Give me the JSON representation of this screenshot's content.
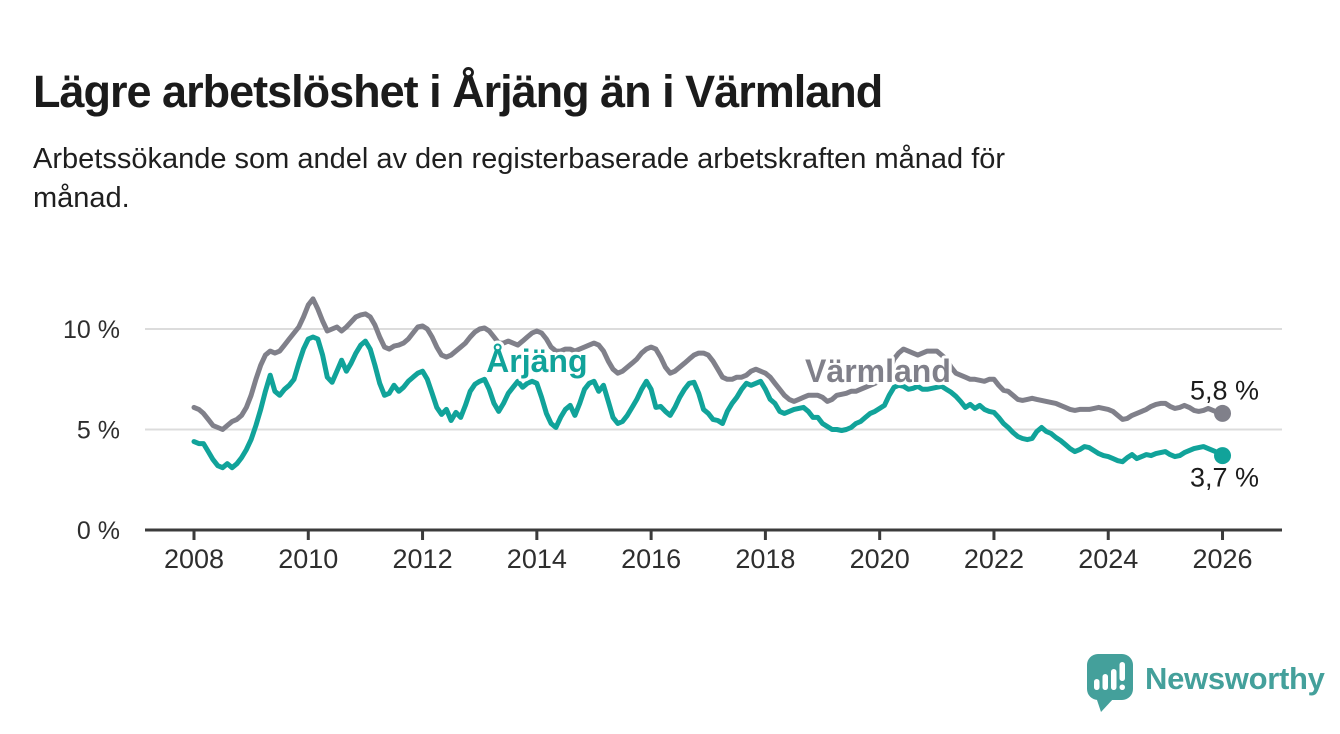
{
  "header": {
    "title": "Lägre arbetslöshet i Årjäng än i Värmland",
    "subtitle_lines": [
      "Arbetssökande som andel av den registerbaserade arbetskraften månad för",
      "månad."
    ]
  },
  "chart_data": {
    "type": "line",
    "unit": "%",
    "frequency": "monthly",
    "x_start_year": 2008,
    "x_end_year": 2026,
    "xlim_years": [
      2007.15,
      2027.05
    ],
    "ylim": [
      0,
      11.9
    ],
    "grid": "horizontal",
    "x_ticks": [
      2008,
      2010,
      2012,
      2014,
      2016,
      2018,
      2020,
      2022,
      2024,
      2026
    ],
    "y_ticks": [
      {
        "value": 0,
        "label": "0 %"
      },
      {
        "value": 5,
        "label": "5 %"
      },
      {
        "value": 10,
        "label": "10 %"
      }
    ],
    "series": [
      {
        "name": "Värmland",
        "color": "#80808a",
        "label": {
          "text": "Värmland",
          "x": 2019.97,
          "y": 7.9
        },
        "end_label": {
          "text": "5,8 %",
          "position": "above"
        },
        "end_value": 5.8,
        "start_year": 2008,
        "values": [
          6.1,
          6.0,
          5.8,
          5.5,
          5.2,
          5.1,
          5.0,
          5.2,
          5.4,
          5.5,
          5.7,
          6.1,
          6.7,
          7.5,
          8.2,
          8.7,
          8.9,
          8.8,
          8.9,
          9.2,
          9.5,
          9.8,
          10.1,
          10.6,
          11.2,
          11.5,
          11.0,
          10.4,
          9.9,
          10.0,
          10.1,
          9.9,
          10.1,
          10.35,
          10.6,
          10.7,
          10.75,
          10.6,
          10.2,
          9.6,
          9.1,
          9.0,
          9.15,
          9.2,
          9.3,
          9.5,
          9.8,
          10.1,
          10.15,
          10.0,
          9.6,
          9.1,
          8.7,
          8.6,
          8.7,
          8.9,
          9.1,
          9.3,
          9.6,
          9.85,
          10.0,
          10.05,
          9.9,
          9.6,
          9.3,
          9.3,
          9.4,
          9.3,
          9.2,
          9.4,
          9.6,
          9.8,
          9.9,
          9.8,
          9.5,
          9.1,
          8.9,
          8.9,
          9.0,
          9.0,
          8.9,
          9.0,
          9.1,
          9.2,
          9.3,
          9.2,
          8.9,
          8.4,
          8.0,
          7.8,
          7.9,
          8.1,
          8.3,
          8.5,
          8.8,
          9.0,
          9.1,
          9.0,
          8.6,
          8.1,
          7.8,
          7.9,
          8.1,
          8.3,
          8.5,
          8.7,
          8.8,
          8.8,
          8.7,
          8.4,
          8.0,
          7.6,
          7.5,
          7.5,
          7.6,
          7.6,
          7.7,
          7.9,
          8.0,
          7.9,
          7.8,
          7.6,
          7.3,
          7.0,
          6.7,
          6.5,
          6.4,
          6.5,
          6.6,
          6.7,
          6.7,
          6.7,
          6.6,
          6.4,
          6.5,
          6.7,
          6.75,
          6.8,
          6.9,
          6.9,
          7.0,
          7.1,
          7.2,
          7.3,
          7.4,
          7.5,
          7.9,
          8.5,
          8.8,
          9.0,
          8.9,
          8.8,
          8.7,
          8.8,
          8.9,
          8.9,
          8.9,
          8.7,
          8.5,
          8.1,
          7.8,
          7.7,
          7.6,
          7.5,
          7.5,
          7.45,
          7.4,
          7.5,
          7.5,
          7.2,
          6.95,
          6.9,
          6.7,
          6.5,
          6.45,
          6.5,
          6.55,
          6.5,
          6.45,
          6.4,
          6.35,
          6.3,
          6.2,
          6.1,
          6.0,
          5.95,
          6.0,
          6.0,
          6.0,
          6.05,
          6.1,
          6.05,
          6.0,
          5.9,
          5.7,
          5.5,
          5.55,
          5.7,
          5.8,
          5.9,
          6.0,
          6.15,
          6.25,
          6.3,
          6.3,
          6.15,
          6.05,
          6.1,
          6.2,
          6.1,
          5.95,
          5.9,
          5.95,
          6.05,
          5.95,
          5.85,
          5.8
        ]
      },
      {
        "name": "Årjäng",
        "color": "#11a39a",
        "label": {
          "text": "Årjäng",
          "x": 2014.0,
          "y": 8.4
        },
        "end_label": {
          "text": "3,7 %",
          "position": "below"
        },
        "end_value": 3.7,
        "start_year": 2008,
        "values": [
          4.4,
          4.3,
          4.3,
          3.9,
          3.5,
          3.2,
          3.1,
          3.3,
          3.1,
          3.3,
          3.6,
          4.0,
          4.5,
          5.2,
          6.0,
          6.9,
          7.7,
          6.9,
          6.7,
          7.0,
          7.2,
          7.5,
          8.3,
          9.0,
          9.5,
          9.6,
          9.5,
          8.7,
          7.6,
          7.35,
          7.9,
          8.45,
          7.9,
          8.3,
          8.8,
          9.2,
          9.4,
          9.0,
          8.2,
          7.3,
          6.7,
          6.8,
          7.2,
          6.9,
          7.1,
          7.4,
          7.6,
          7.8,
          7.9,
          7.5,
          6.8,
          6.1,
          5.75,
          6.0,
          5.45,
          5.85,
          5.6,
          6.2,
          6.9,
          7.25,
          7.4,
          7.5,
          7.0,
          6.3,
          5.9,
          6.3,
          6.8,
          7.1,
          7.4,
          7.1,
          7.3,
          7.4,
          7.3,
          6.6,
          5.8,
          5.3,
          5.1,
          5.6,
          6.0,
          6.2,
          5.7,
          6.3,
          7.0,
          7.3,
          7.4,
          6.9,
          7.2,
          6.4,
          5.6,
          5.3,
          5.4,
          5.7,
          6.1,
          6.5,
          7.0,
          7.4,
          7.0,
          6.1,
          6.15,
          5.9,
          5.7,
          6.1,
          6.6,
          7.0,
          7.3,
          7.35,
          6.8,
          6.0,
          5.8,
          5.5,
          5.45,
          5.3,
          5.9,
          6.3,
          6.6,
          7.0,
          7.3,
          7.2,
          7.3,
          7.4,
          7.0,
          6.5,
          6.3,
          5.9,
          5.8,
          5.9,
          6.0,
          6.05,
          6.1,
          5.9,
          5.6,
          5.6,
          5.3,
          5.15,
          5.0,
          5.0,
          4.95,
          5.0,
          5.1,
          5.3,
          5.4,
          5.6,
          5.8,
          5.9,
          6.05,
          6.2,
          6.7,
          7.1,
          7.2,
          7.15,
          7.0,
          7.05,
          7.15,
          7.0,
          7.0,
          7.05,
          7.1,
          7.15,
          7.0,
          6.85,
          6.65,
          6.4,
          6.1,
          6.25,
          6.05,
          6.2,
          6.0,
          5.9,
          5.85,
          5.6,
          5.3,
          5.1,
          4.85,
          4.65,
          4.55,
          4.5,
          4.55,
          4.9,
          5.1,
          4.9,
          4.8,
          4.6,
          4.45,
          4.25,
          4.05,
          3.9,
          4.0,
          4.15,
          4.1,
          3.95,
          3.8,
          3.7,
          3.65,
          3.55,
          3.45,
          3.4,
          3.6,
          3.75,
          3.55,
          3.65,
          3.75,
          3.7,
          3.8,
          3.85,
          3.9,
          3.75,
          3.65,
          3.7,
          3.85,
          3.95,
          4.05,
          4.1,
          4.15,
          4.05,
          3.95,
          3.85,
          3.7
        ]
      }
    ]
  },
  "footer": {
    "brand": "Newsworthy"
  },
  "colors": {
    "accent_teal": "#11a39a",
    "line_gray": "#80808a",
    "logo_teal": "#44a09b",
    "grid": "#dcdcdc",
    "axis": "#3b3b3b",
    "text_dark": "#1b1b1b"
  }
}
